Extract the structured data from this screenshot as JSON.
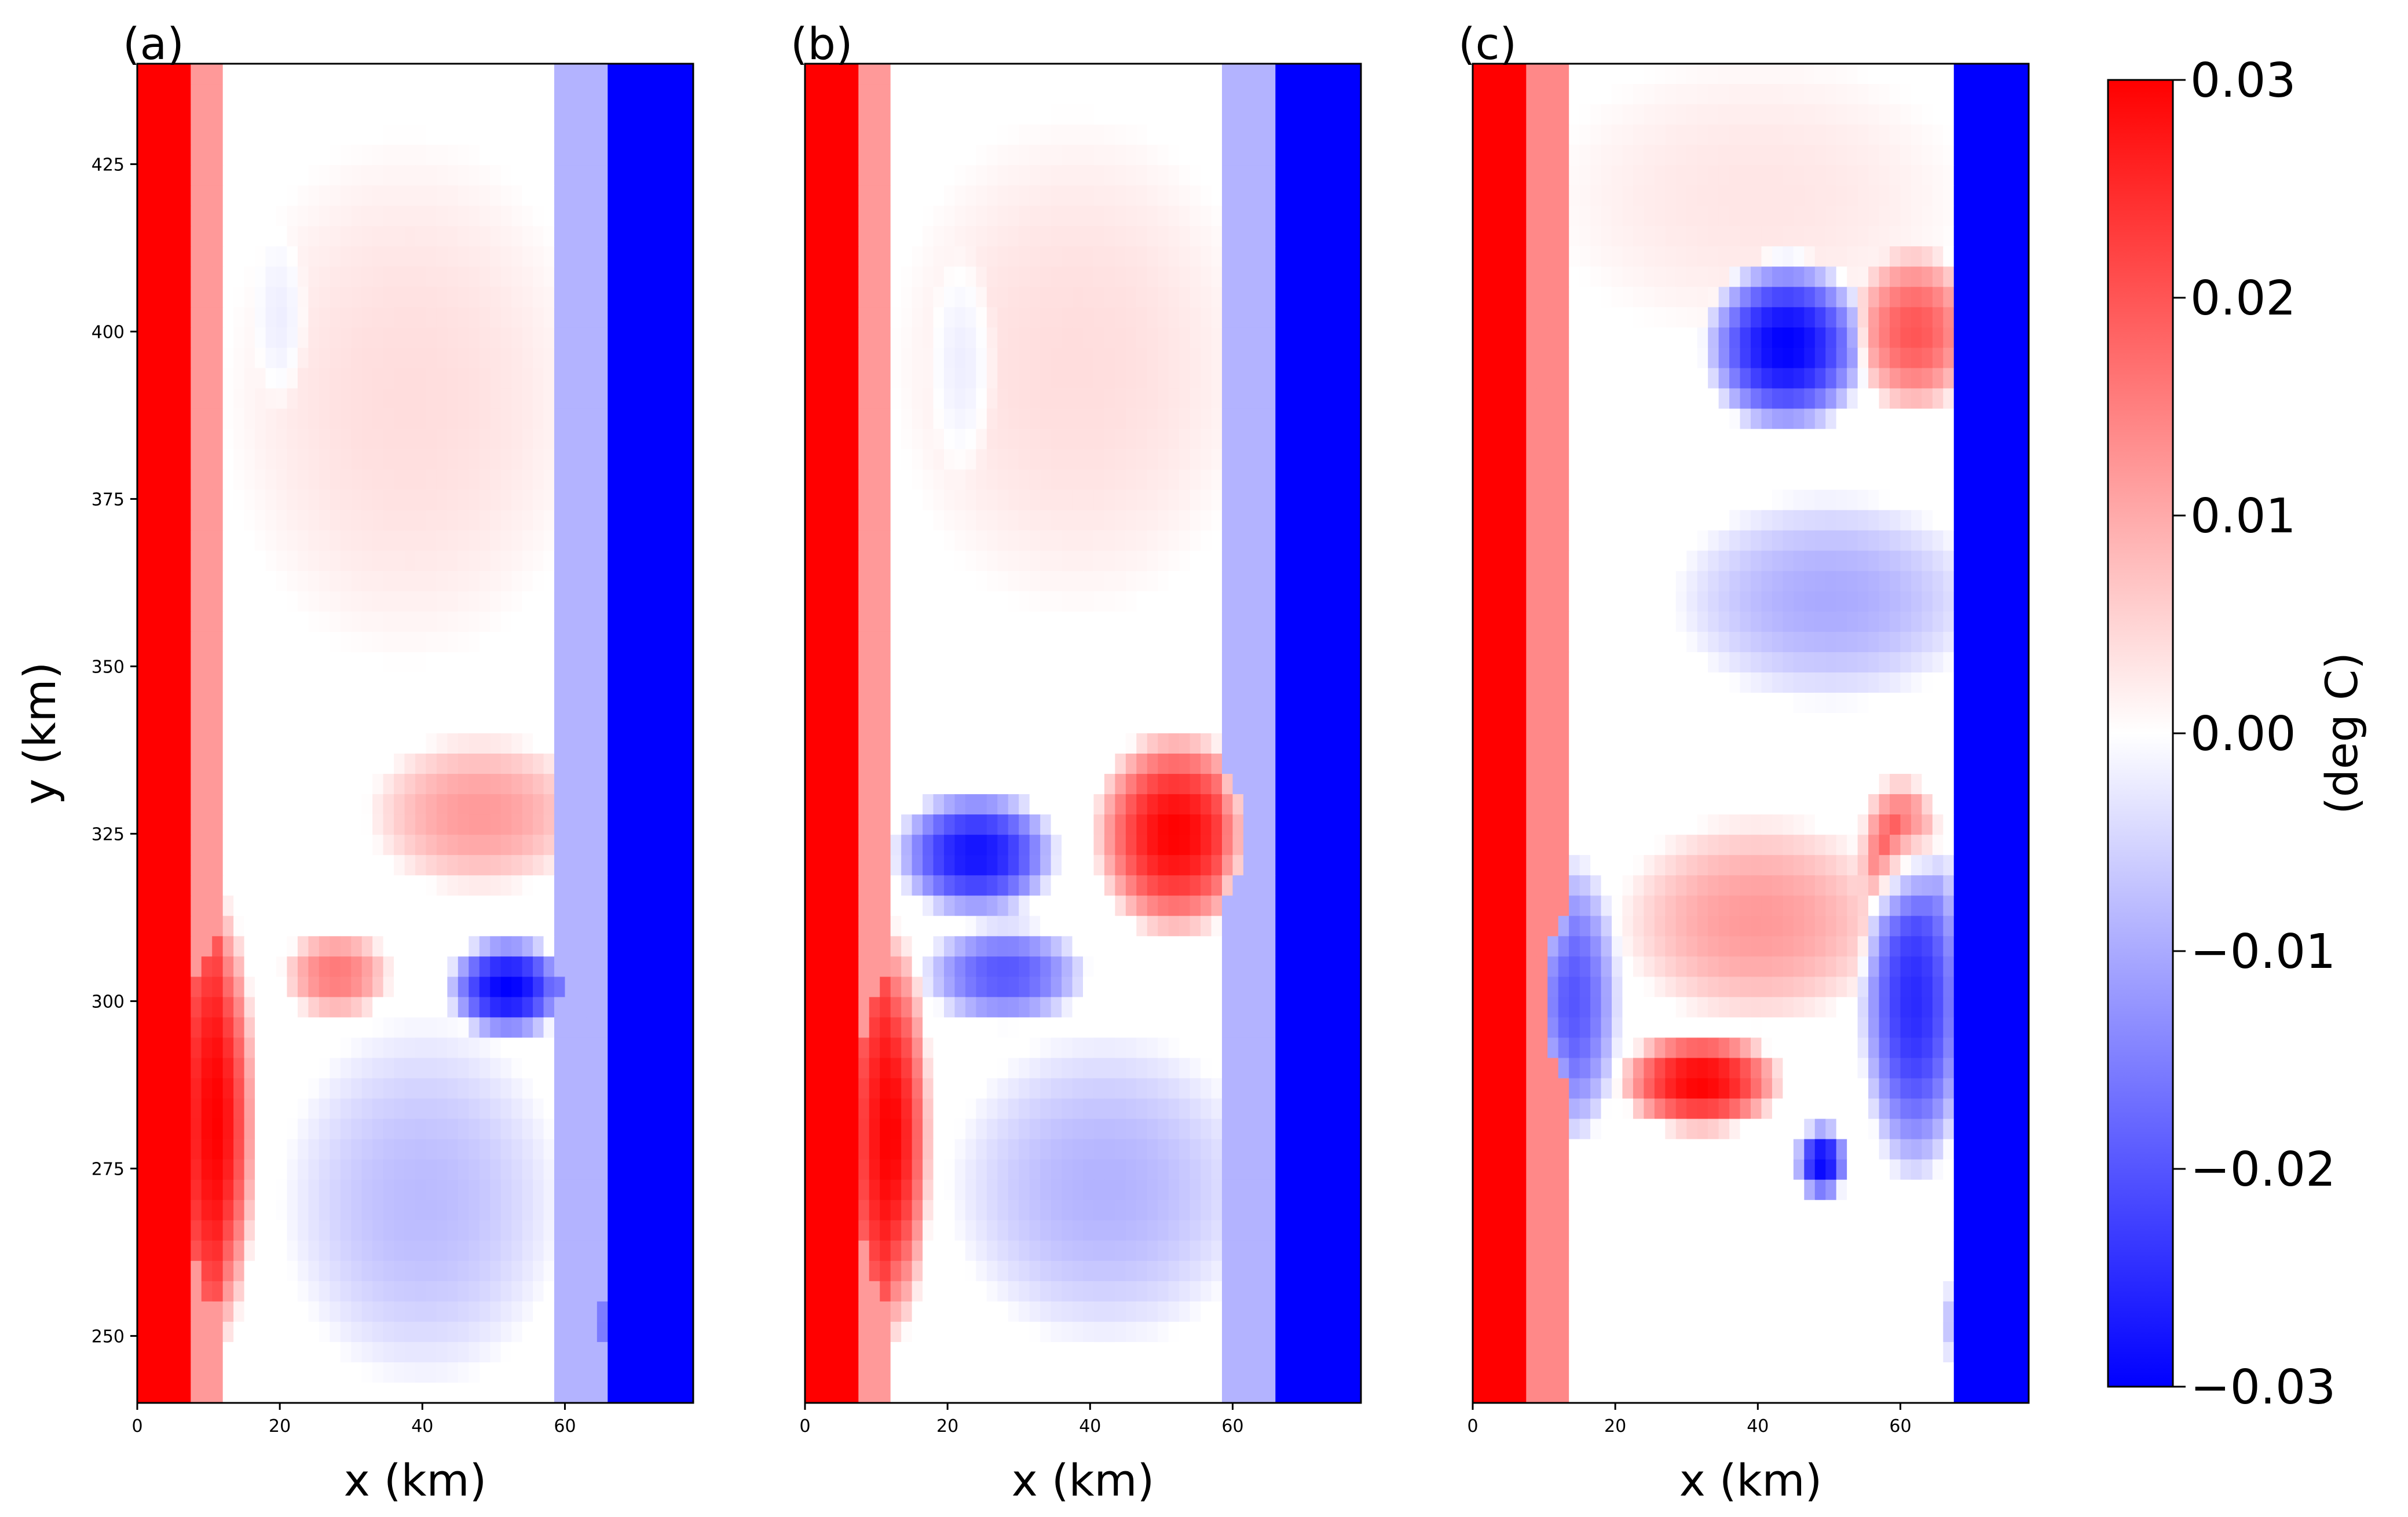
{
  "chart_data": {
    "type": "heatmap",
    "panels": [
      {
        "id": "a",
        "label": "(a)",
        "xlabel": "x (km)",
        "ylabel": "y (km)",
        "show_yticks": true,
        "xlim": [
          0,
          78
        ],
        "ylim": [
          240,
          440
        ],
        "xticks": [
          0,
          20,
          40,
          60
        ],
        "yticks": [
          250,
          275,
          300,
          325,
          350,
          375,
          400,
          425
        ],
        "features": [
          {
            "kind": "band",
            "x": [
              0,
              7
            ],
            "y": [
              240,
              440
            ],
            "value": 0.03
          },
          {
            "kind": "band",
            "x": [
              7,
              12
            ],
            "y": [
              240,
              440
            ],
            "value": 0.012
          },
          {
            "kind": "band",
            "x": [
              66,
              78
            ],
            "y": [
              240,
              440
            ],
            "value": -0.03
          },
          {
            "kind": "band",
            "x": [
              58,
              66
            ],
            "y": [
              240,
              440
            ],
            "value": -0.009
          },
          {
            "kind": "blob",
            "cx": 38,
            "cy": 390,
            "rx": 26,
            "ry": 40,
            "value": 0.004
          },
          {
            "kind": "blob",
            "cx": 20,
            "cy": 402,
            "rx": 4,
            "ry": 14,
            "value": -0.002
          },
          {
            "kind": "blob",
            "cx": 48,
            "cy": 328,
            "rx": 16,
            "ry": 12,
            "value": 0.012
          },
          {
            "kind": "blob",
            "cx": 28,
            "cy": 304,
            "rx": 8,
            "ry": 7,
            "value": 0.016
          },
          {
            "kind": "blob",
            "cx": 52,
            "cy": 302,
            "rx": 9,
            "ry": 8,
            "value": -0.03
          },
          {
            "kind": "blob",
            "cx": 11,
            "cy": 282,
            "rx": 6,
            "ry": 35,
            "value": 0.03
          },
          {
            "kind": "blob",
            "cx": 40,
            "cy": 270,
            "rx": 20,
            "ry": 28,
            "value": -0.008
          },
          {
            "kind": "blob",
            "cx": 4,
            "cy": 252,
            "rx": 5,
            "ry": 12,
            "value": -0.03
          },
          {
            "kind": "blob",
            "cx": 71,
            "cy": 252,
            "rx": 7,
            "ry": 12,
            "value": -0.03
          }
        ]
      },
      {
        "id": "b",
        "label": "(b)",
        "xlabel": "x (km)",
        "ylabel": "",
        "show_yticks": false,
        "xlim": [
          0,
          78
        ],
        "ylim": [
          240,
          440
        ],
        "xticks": [
          0,
          20,
          40,
          60
        ],
        "yticks": [],
        "features": [
          {
            "kind": "band",
            "x": [
              0,
              7
            ],
            "y": [
              240,
              440
            ],
            "value": 0.03
          },
          {
            "kind": "band",
            "x": [
              7,
              12
            ],
            "y": [
              240,
              440
            ],
            "value": 0.012
          },
          {
            "kind": "band",
            "x": [
              66,
              78
            ],
            "y": [
              240,
              440
            ],
            "value": -0.03
          },
          {
            "kind": "band",
            "x": [
              58,
              66
            ],
            "y": [
              240,
              440
            ],
            "value": -0.009
          },
          {
            "kind": "blob",
            "cx": 38,
            "cy": 395,
            "rx": 26,
            "ry": 38,
            "value": 0.004
          },
          {
            "kind": "blob",
            "cx": 22,
            "cy": 395,
            "rx": 5,
            "ry": 18,
            "value": -0.002
          },
          {
            "kind": "blob",
            "cx": 52,
            "cy": 325,
            "rx": 12,
            "ry": 16,
            "value": 0.03
          },
          {
            "kind": "blob",
            "cx": 24,
            "cy": 322,
            "rx": 12,
            "ry": 10,
            "value": -0.028
          },
          {
            "kind": "blob",
            "cx": 28,
            "cy": 304,
            "rx": 12,
            "ry": 8,
            "value": -0.02
          },
          {
            "kind": "blob",
            "cx": 12,
            "cy": 280,
            "rx": 6,
            "ry": 32,
            "value": 0.03
          },
          {
            "kind": "blob",
            "cx": 42,
            "cy": 272,
            "rx": 22,
            "ry": 24,
            "value": -0.009
          },
          {
            "kind": "blob",
            "cx": 4,
            "cy": 252,
            "rx": 5,
            "ry": 12,
            "value": -0.03
          },
          {
            "kind": "blob",
            "cx": 72,
            "cy": 252,
            "rx": 6,
            "ry": 12,
            "value": -0.03
          }
        ]
      },
      {
        "id": "c",
        "label": "(c)",
        "xlabel": "x (km)",
        "ylabel": "",
        "show_yticks": false,
        "xlim": [
          0,
          78
        ],
        "ylim": [
          240,
          440
        ],
        "xticks": [
          0,
          20,
          40,
          60
        ],
        "yticks": [],
        "features": [
          {
            "kind": "band",
            "x": [
              0,
              8
            ],
            "y": [
              240,
              440
            ],
            "value": 0.03
          },
          {
            "kind": "band",
            "x": [
              8,
              13
            ],
            "y": [
              240,
              440
            ],
            "value": 0.014
          },
          {
            "kind": "band",
            "x": [
              68,
              78
            ],
            "y": [
              240,
              440
            ],
            "value": -0.03
          },
          {
            "kind": "blob",
            "cx": 40,
            "cy": 420,
            "rx": 30,
            "ry": 22,
            "value": 0.003
          },
          {
            "kind": "blob",
            "cx": 44,
            "cy": 398,
            "rx": 12,
            "ry": 14,
            "value": -0.03
          },
          {
            "kind": "blob",
            "cx": 62,
            "cy": 400,
            "rx": 9,
            "ry": 13,
            "value": 0.02
          },
          {
            "kind": "blob",
            "cx": 50,
            "cy": 360,
            "rx": 22,
            "ry": 16,
            "value": -0.01
          },
          {
            "kind": "blob",
            "cx": 40,
            "cy": 312,
            "rx": 20,
            "ry": 16,
            "value": 0.012
          },
          {
            "kind": "blob",
            "cx": 60,
            "cy": 322,
            "rx": 6,
            "ry": 12,
            "value": 0.022
          },
          {
            "kind": "blob",
            "cx": 32,
            "cy": 288,
            "rx": 12,
            "ry": 8,
            "value": 0.03
          },
          {
            "kind": "blob",
            "cx": 14,
            "cy": 300,
            "rx": 7,
            "ry": 22,
            "value": -0.02
          },
          {
            "kind": "blob",
            "cx": 49,
            "cy": 276,
            "rx": 4,
            "ry": 6,
            "value": -0.03
          },
          {
            "kind": "blob",
            "cx": 62,
            "cy": 300,
            "rx": 8,
            "ry": 28,
            "value": -0.025
          },
          {
            "kind": "blob",
            "cx": 4,
            "cy": 282,
            "rx": 4,
            "ry": 20,
            "value": 0.03
          },
          {
            "kind": "blob",
            "cx": 4,
            "cy": 252,
            "rx": 5,
            "ry": 12,
            "value": -0.03
          },
          {
            "kind": "blob",
            "cx": 72,
            "cy": 252,
            "rx": 6,
            "ry": 12,
            "value": -0.03
          }
        ]
      }
    ],
    "colorbar": {
      "label": "(deg C)",
      "min": -0.03,
      "max": 0.03,
      "ticks": [
        "0.03",
        "0.02",
        "0.01",
        "0.00",
        "−0.01",
        "−0.02",
        "−0.03"
      ],
      "tick_values": [
        0.03,
        0.02,
        0.01,
        0.0,
        -0.01,
        -0.02,
        -0.03
      ],
      "colors": {
        "low": "#0000ff",
        "mid": "#ffffff",
        "high": "#ff0000"
      }
    }
  }
}
